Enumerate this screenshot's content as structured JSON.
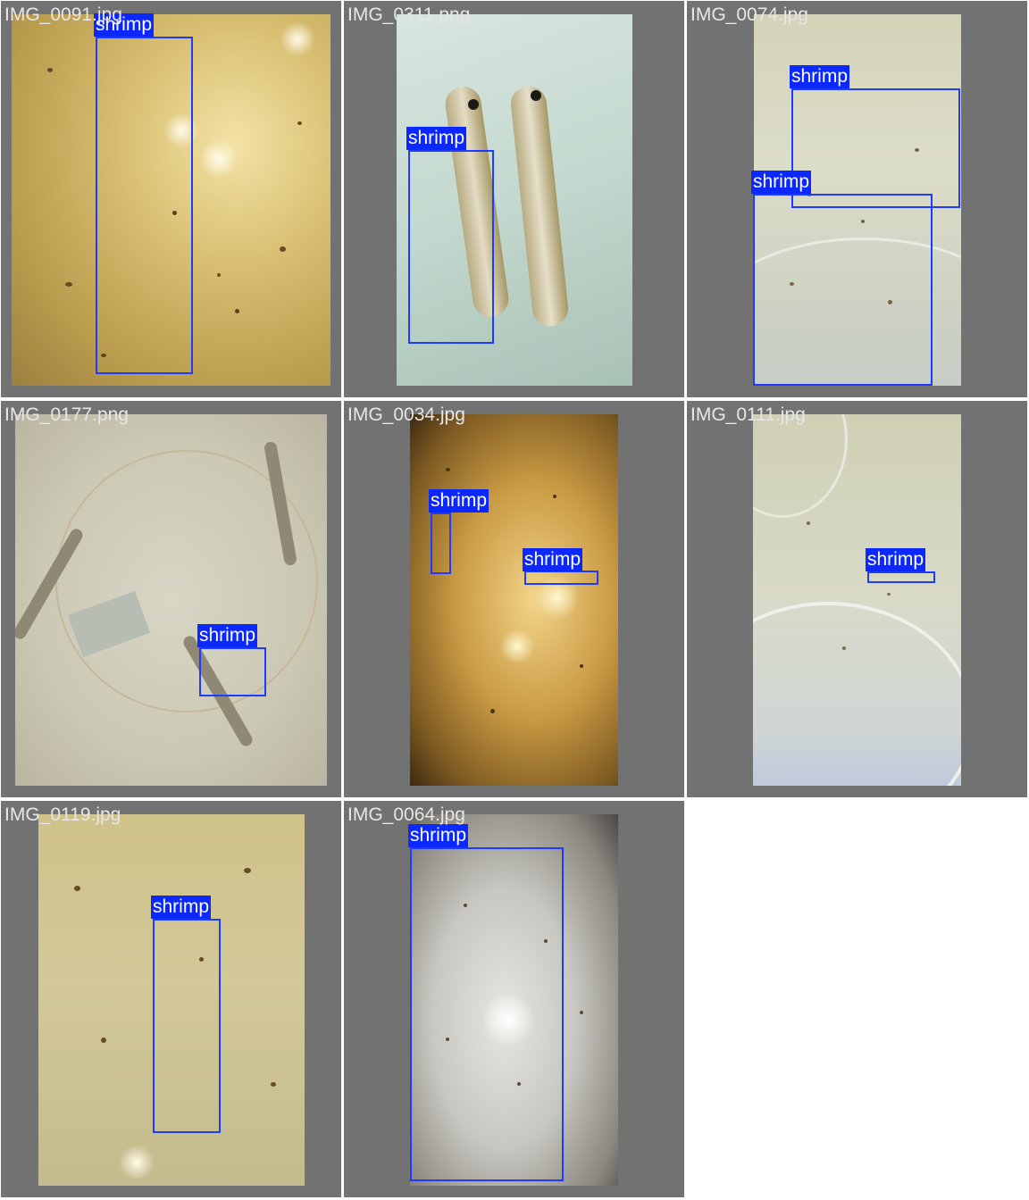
{
  "tiles": [
    {
      "filename": "IMG_0091.jpg",
      "detections": [
        {
          "label": "shrimp"
        }
      ]
    },
    {
      "filename": "IMG_0311.png",
      "detections": [
        {
          "label": "shrimp"
        }
      ]
    },
    {
      "filename": "IMG_0074.jpg",
      "detections": [
        {
          "label": "shrimp"
        },
        {
          "label": "shrimp"
        }
      ]
    },
    {
      "filename": "IMG_0177.png",
      "detections": [
        {
          "label": "shrimp"
        }
      ]
    },
    {
      "filename": "IMG_0034.jpg",
      "detections": [
        {
          "label": "shrimp"
        },
        {
          "label": "shrimp"
        }
      ]
    },
    {
      "filename": "IMG_0111.jpg",
      "detections": [
        {
          "label": "shrimp"
        }
      ]
    },
    {
      "filename": "IMG_0119.jpg",
      "detections": [
        {
          "label": "shrimp"
        }
      ]
    },
    {
      "filename": "IMG_0064.jpg",
      "detections": [
        {
          "label": "shrimp"
        }
      ]
    }
  ],
  "colors": {
    "tile_background": "#727272",
    "box_border": "#1e3cff",
    "label_background": "#0a28ff",
    "label_text": "#ffffff",
    "filename_text": "#e6e6e6"
  }
}
